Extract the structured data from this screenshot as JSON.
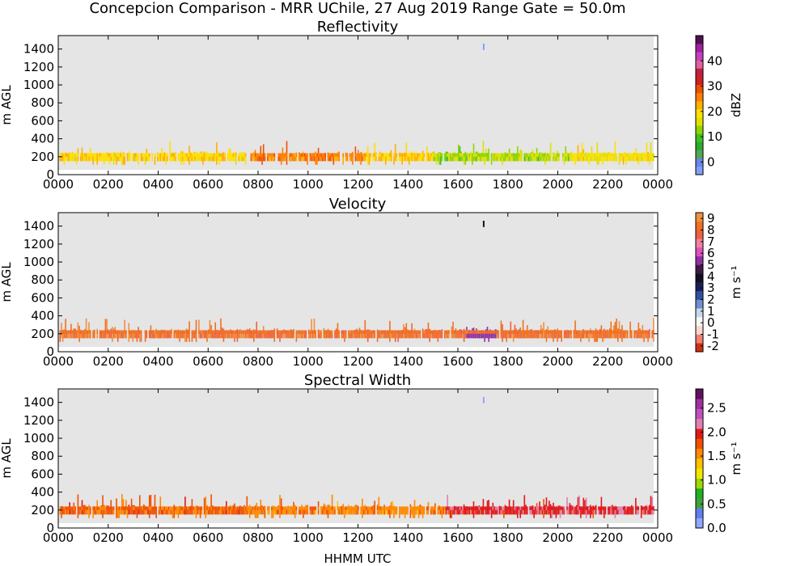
{
  "figure": {
    "title": "Concepcion Comparison - MRR UChile, 27 Aug 2019 Range Gate = 50.0m",
    "xlabel": "HHMM UTC",
    "plot_background": "#e5e5e5"
  },
  "chart_data": [
    {
      "type": "heatmap",
      "title": "Reflectivity",
      "ylabel": "m AGL",
      "xlabel": "",
      "x_ticks": [
        "0000",
        "0200",
        "0400",
        "0600",
        "0800",
        "1000",
        "1200",
        "1400",
        "1600",
        "1800",
        "2000",
        "2200",
        "0000"
      ],
      "y_ticks": [
        "0",
        "200",
        "400",
        "600",
        "800",
        "1000",
        "1200",
        "1400"
      ],
      "xlim_hours": [
        0,
        24
      ],
      "ylim": [
        0,
        1550
      ],
      "colorbar": {
        "label": "dBZ",
        "range": [
          -5,
          50
        ],
        "ticks": [
          "0",
          "10",
          "20",
          "30",
          "40"
        ],
        "tick_values": [
          0,
          10,
          20,
          30,
          40
        ],
        "colors": [
          "#7f9fff",
          "#6a86e8",
          "#52a852",
          "#2ea82e",
          "#3cc21c",
          "#8fd400",
          "#e0e000",
          "#ffe000",
          "#ffb000",
          "#ff8000",
          "#f05000",
          "#d02020",
          "#c02040",
          "#e060a0",
          "#c040c0",
          "#a020a0",
          "#501050"
        ]
      },
      "data_summary": {
        "echo_base_m": 150,
        "echo_top_range_m": [
          200,
          380
        ],
        "typical_value_by_period": [
          {
            "from_hour": 0,
            "to_hour": 7.5,
            "value": 20
          },
          {
            "from_hour": 7.5,
            "to_hour": 12.3,
            "value": 26
          },
          {
            "from_hour": 12.3,
            "to_hour": 15,
            "value": 21
          },
          {
            "from_hour": 15,
            "to_hour": 20.5,
            "value": 14
          },
          {
            "from_hour": 20.5,
            "to_hour": 24,
            "value": 18
          }
        ],
        "isolated_echo": {
          "hour": 17.0,
          "height_m": 1420,
          "value": -3
        }
      }
    },
    {
      "type": "heatmap",
      "title": "Velocity",
      "ylabel": "m AGL",
      "xlabel": "",
      "x_ticks": [
        "0000",
        "0200",
        "0400",
        "0600",
        "0800",
        "1000",
        "1200",
        "1400",
        "1600",
        "1800",
        "2000",
        "2200",
        "0000"
      ],
      "y_ticks": [
        "0",
        "200",
        "400",
        "600",
        "800",
        "1000",
        "1200",
        "1400"
      ],
      "xlim_hours": [
        0,
        24
      ],
      "ylim": [
        0,
        1550
      ],
      "colorbar": {
        "label": "m s⁻¹",
        "range": [
          -2.5,
          9.5
        ],
        "ticks": [
          "-2",
          "-1",
          "0",
          "1",
          "2",
          "3",
          "4",
          "5",
          "6",
          "7",
          "8",
          "9"
        ],
        "tick_values": [
          -2,
          -1,
          0,
          1,
          2,
          3,
          4,
          5,
          6,
          7,
          8,
          9
        ],
        "colors": [
          "#d03010",
          "#f08070",
          "#f8d8d0",
          "#f8f8f8",
          "#c8d8f0",
          "#7090d0",
          "#3050a0",
          "#182058",
          "#101020",
          "#401848",
          "#9030a0",
          "#e050c0",
          "#f080a0",
          "#f06040",
          "#f07020",
          "#f09040"
        ]
      },
      "data_summary": {
        "echo_base_m": 150,
        "echo_top_range_m": [
          200,
          380
        ],
        "typical_value": 8.3,
        "pink_segment": {
          "from_hour": 16.3,
          "to_hour": 17.5,
          "value": 5.5
        },
        "isolated_echo": {
          "hour": 17.0,
          "height_m": 1420,
          "value": 3.5
        }
      }
    },
    {
      "type": "heatmap",
      "title": "Spectral Width",
      "ylabel": "m AGL",
      "xlabel": "HHMM UTC",
      "x_ticks": [
        "0000",
        "0200",
        "0400",
        "0600",
        "0800",
        "1000",
        "1200",
        "1400",
        "1600",
        "1800",
        "2000",
        "2200",
        "0000"
      ],
      "y_ticks": [
        "0",
        "200",
        "400",
        "600",
        "800",
        "1000",
        "1200",
        "1400"
      ],
      "xlim_hours": [
        0,
        24
      ],
      "ylim": [
        0,
        1550
      ],
      "colorbar": {
        "label": "m s⁻¹",
        "range": [
          0,
          2.9
        ],
        "ticks": [
          "0.0",
          "0.5",
          "1.0",
          "1.5",
          "2.0",
          "2.5"
        ],
        "tick_values": [
          0,
          0.5,
          1.0,
          1.5,
          2.0,
          2.5
        ],
        "colors": [
          "#8fa8ff",
          "#6080f0",
          "#40a040",
          "#20b020",
          "#a0d800",
          "#f0e800",
          "#ffc000",
          "#ff8800",
          "#f05000",
          "#e01818",
          "#e080b0",
          "#c050c0",
          "#a030a0",
          "#601060"
        ]
      },
      "data_summary": {
        "echo_base_m": 150,
        "echo_top_range_m": [
          200,
          380
        ],
        "typical_value_by_period": [
          {
            "from_hour": 0,
            "to_hour": 7.5,
            "value": 1.7
          },
          {
            "from_hour": 7.5,
            "to_hour": 15.5,
            "value": 1.6
          },
          {
            "from_hour": 15.5,
            "to_hour": 24,
            "value": 2.0
          }
        ],
        "isolated_echo": {
          "hour": 17.0,
          "height_m": 1420,
          "value": 0.1
        }
      }
    }
  ]
}
